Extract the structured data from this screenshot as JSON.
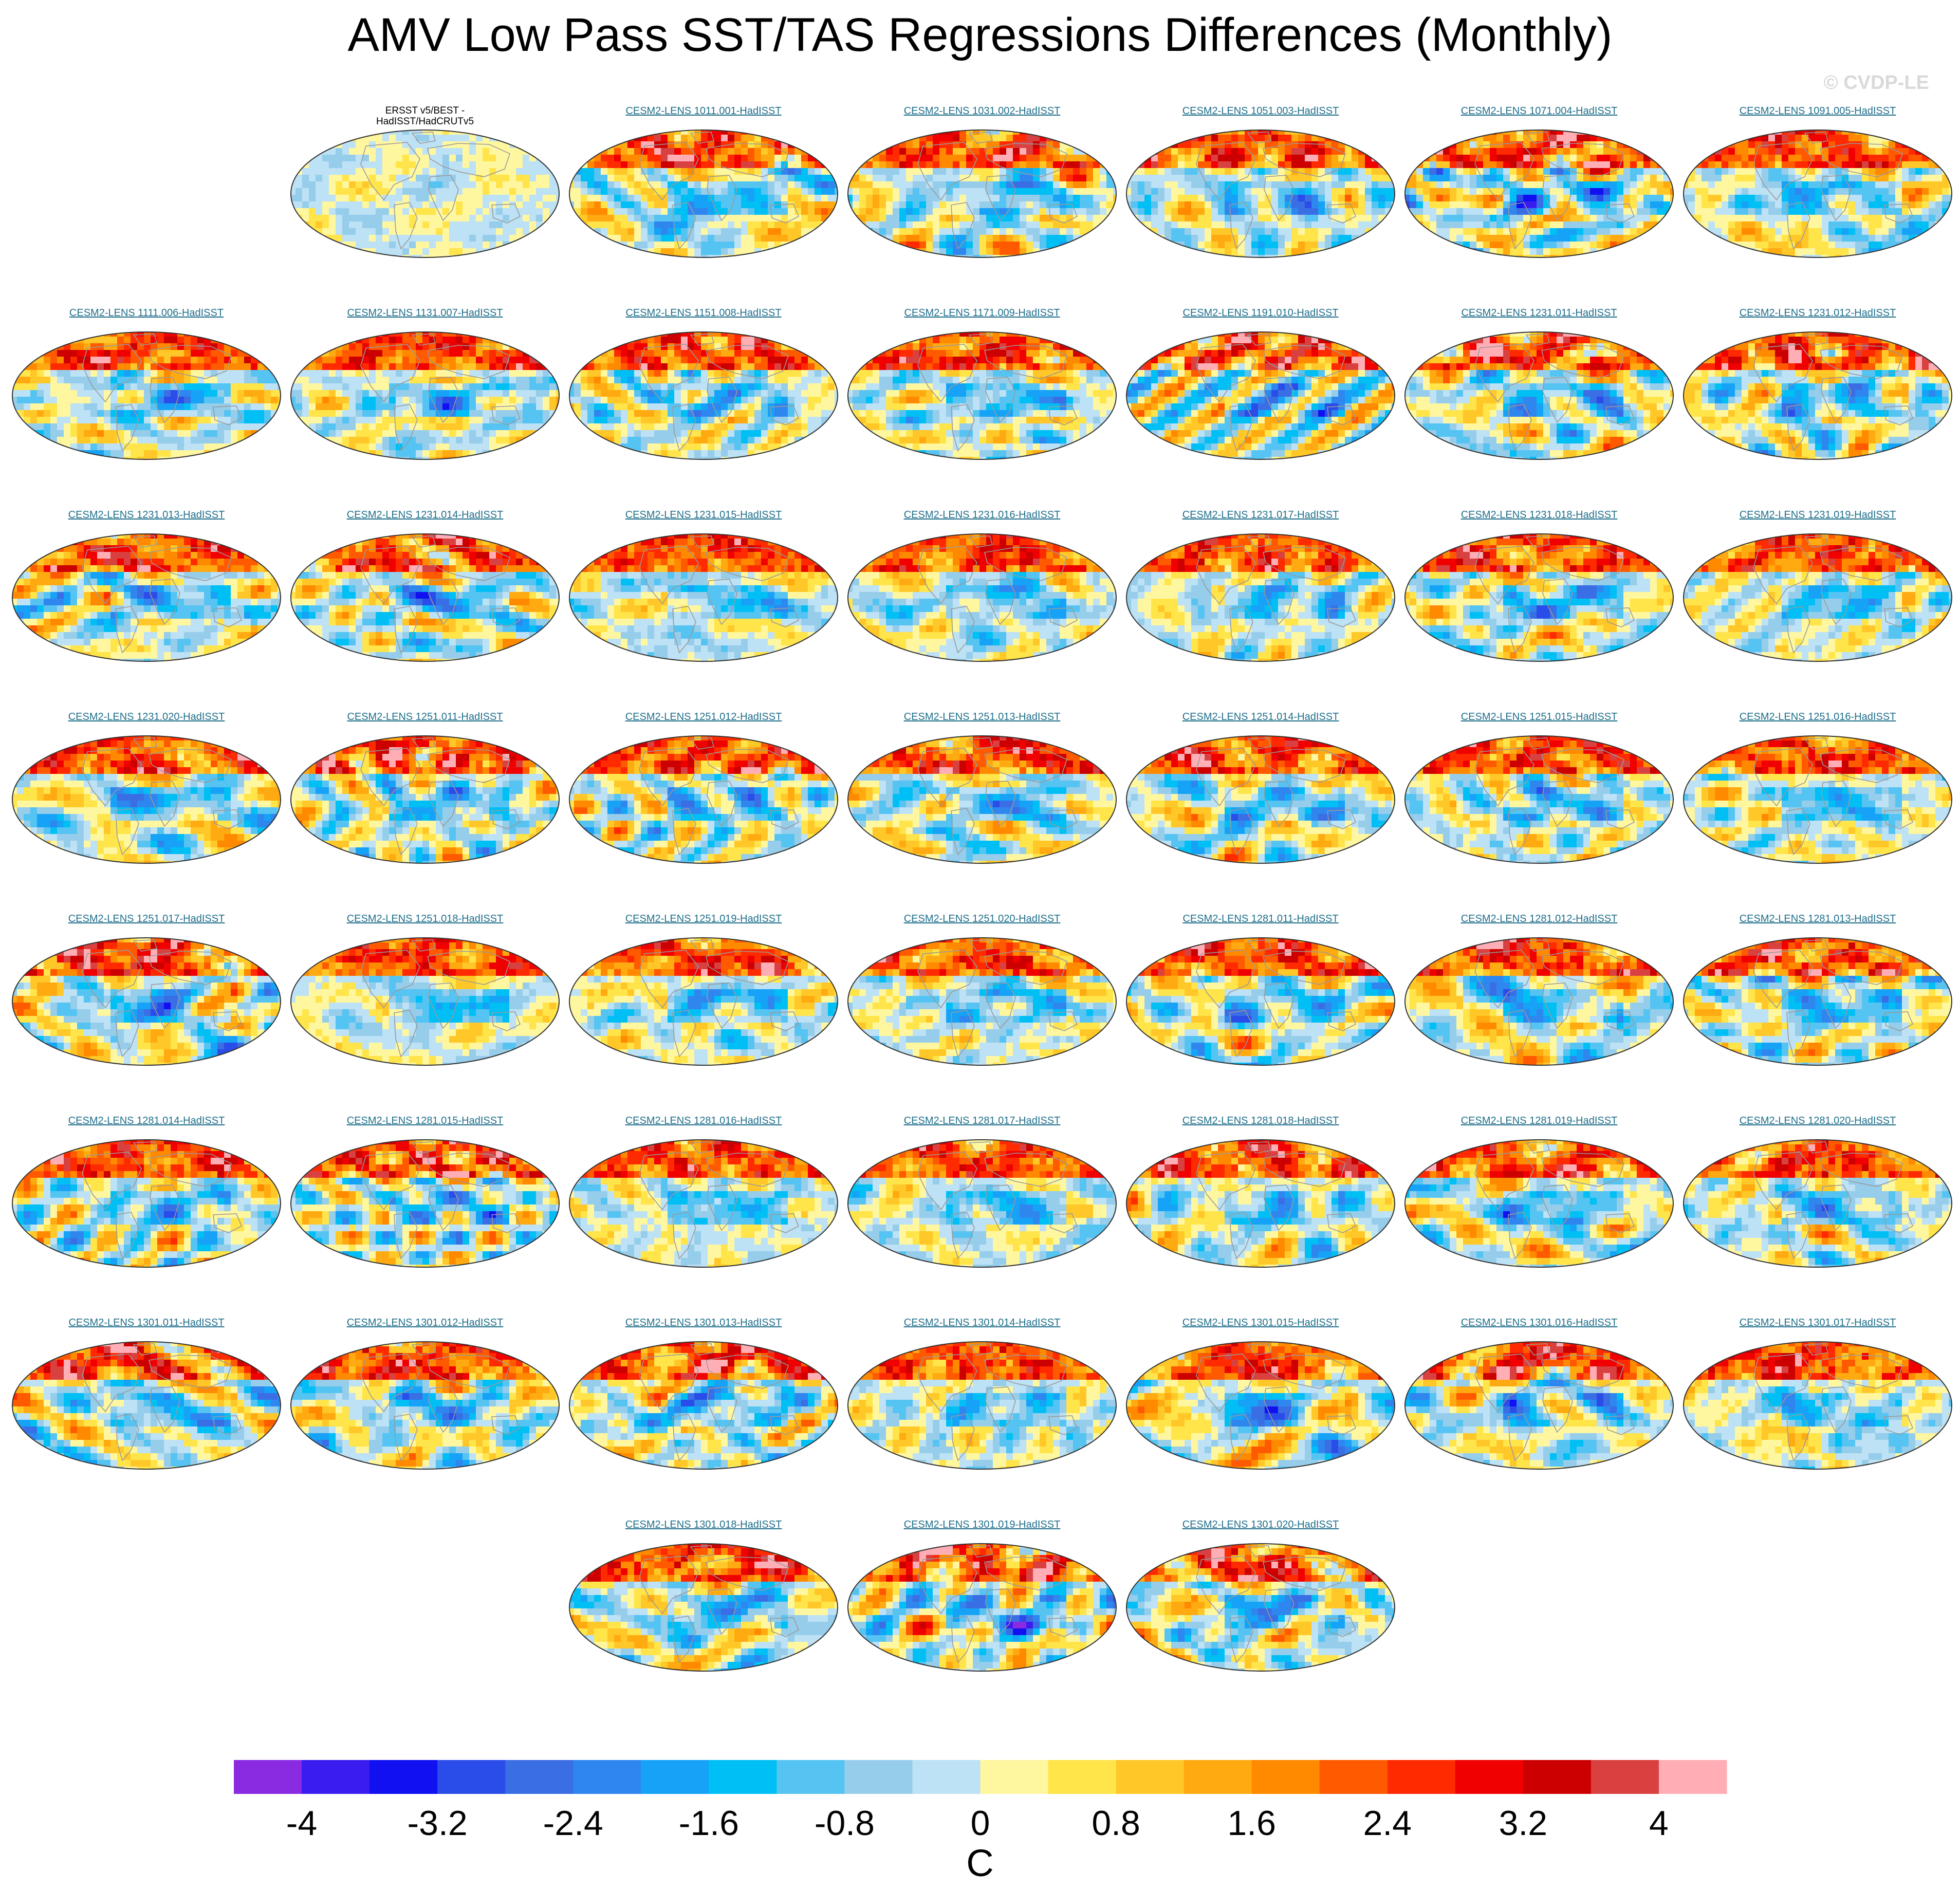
{
  "title": "AMV Low Pass SST/TAS Regressions Differences (Monthly)",
  "watermark": "© CVDP-LE",
  "panels": [
    {
      "label": "ERSST v5/BEST -",
      "label2": "HadISST/HadCRUTv5",
      "obs": true
    },
    {
      "label": "CESM2-LENS 1011.001-HadISST"
    },
    {
      "label": "CESM2-LENS 1031.002-HadISST"
    },
    {
      "label": "CESM2-LENS 1051.003-HadISST"
    },
    {
      "label": "CESM2-LENS 1071.004-HadISST"
    },
    {
      "label": "CESM2-LENS 1091.005-HadISST"
    },
    {
      "label": "CESM2-LENS 1111.006-HadISST"
    },
    {
      "label": "CESM2-LENS 1131.007-HadISST"
    },
    {
      "label": "CESM2-LENS 1151.008-HadISST"
    },
    {
      "label": "CESM2-LENS 1171.009-HadISST"
    },
    {
      "label": "CESM2-LENS 1191.010-HadISST"
    },
    {
      "label": "CESM2-LENS 1231.011-HadISST"
    },
    {
      "label": "CESM2-LENS 1231.012-HadISST"
    },
    {
      "label": "CESM2-LENS 1231.013-HadISST"
    },
    {
      "label": "CESM2-LENS 1231.014-HadISST"
    },
    {
      "label": "CESM2-LENS 1231.015-HadISST"
    },
    {
      "label": "CESM2-LENS 1231.016-HadISST"
    },
    {
      "label": "CESM2-LENS 1231.017-HadISST"
    },
    {
      "label": "CESM2-LENS 1231.018-HadISST"
    },
    {
      "label": "CESM2-LENS 1231.019-HadISST"
    },
    {
      "label": "CESM2-LENS 1231.020-HadISST"
    },
    {
      "label": "CESM2-LENS 1251.011-HadISST"
    },
    {
      "label": "CESM2-LENS 1251.012-HadISST"
    },
    {
      "label": "CESM2-LENS 1251.013-HadISST"
    },
    {
      "label": "CESM2-LENS 1251.014-HadISST"
    },
    {
      "label": "CESM2-LENS 1251.015-HadISST"
    },
    {
      "label": "CESM2-LENS 1251.016-HadISST"
    },
    {
      "label": "CESM2-LENS 1251.017-HadISST"
    },
    {
      "label": "CESM2-LENS 1251.018-HadISST"
    },
    {
      "label": "CESM2-LENS 1251.019-HadISST"
    },
    {
      "label": "CESM2-LENS 1251.020-HadISST"
    },
    {
      "label": "CESM2-LENS 1281.011-HadISST"
    },
    {
      "label": "CESM2-LENS 1281.012-HadISST"
    },
    {
      "label": "CESM2-LENS 1281.013-HadISST"
    },
    {
      "label": "CESM2-LENS 1281.014-HadISST"
    },
    {
      "label": "CESM2-LENS 1281.015-HadISST"
    },
    {
      "label": "CESM2-LENS 1281.016-HadISST"
    },
    {
      "label": "CESM2-LENS 1281.017-HadISST"
    },
    {
      "label": "CESM2-LENS 1281.018-HadISST"
    },
    {
      "label": "CESM2-LENS 1281.019-HadISST"
    },
    {
      "label": "CESM2-LENS 1281.020-HadISST"
    },
    {
      "label": "CESM2-LENS 1301.011-HadISST"
    },
    {
      "label": "CESM2-LENS 1301.012-HadISST"
    },
    {
      "label": "CESM2-LENS 1301.013-HadISST"
    },
    {
      "label": "CESM2-LENS 1301.014-HadISST"
    },
    {
      "label": "CESM2-LENS 1301.015-HadISST"
    },
    {
      "label": "CESM2-LENS 1301.016-HadISST"
    },
    {
      "label": "CESM2-LENS 1301.017-HadISST"
    },
    {
      "label": "CESM2-LENS 1301.018-HadISST"
    },
    {
      "label": "CESM2-LENS 1301.019-HadISST"
    },
    {
      "label": "CESM2-LENS 1301.020-HadISST"
    }
  ],
  "chart_data": {
    "type": "heatmap",
    "title": "AMV Low Pass SST/TAS Regressions Differences (Monthly)",
    "panel_layout": "7-column grid of global maps (Robinson projection), 50 panels",
    "units": "C",
    "colorbar": {
      "label": "C",
      "min": -4.4,
      "max": 4.4,
      "step": 0.4,
      "tick_labels": [
        "-4",
        "-3.2",
        "-2.4",
        "-1.6",
        "-0.8",
        "0",
        "0.8",
        "1.6",
        "2.4",
        "3.2",
        "4"
      ],
      "tick_values": [
        -4,
        -3.2,
        -2.4,
        -1.6,
        -0.8,
        0,
        0.8,
        1.6,
        2.4,
        3.2,
        4
      ],
      "colors": [
        "#8a2be2",
        "#3a1cf0",
        "#1010f0",
        "#2a4ce8",
        "#3a6ee4",
        "#2f86ee",
        "#16a2f6",
        "#00bff5",
        "#55c4f2",
        "#96cdea",
        "#bde1f5",
        "#fff7a0",
        "#ffe44a",
        "#ffc828",
        "#ffaa10",
        "#ff8a00",
        "#ff5a00",
        "#ff2a00",
        "#f00000",
        "#cc0000",
        "#d94040",
        "#ffaeb6"
      ]
    }
  }
}
